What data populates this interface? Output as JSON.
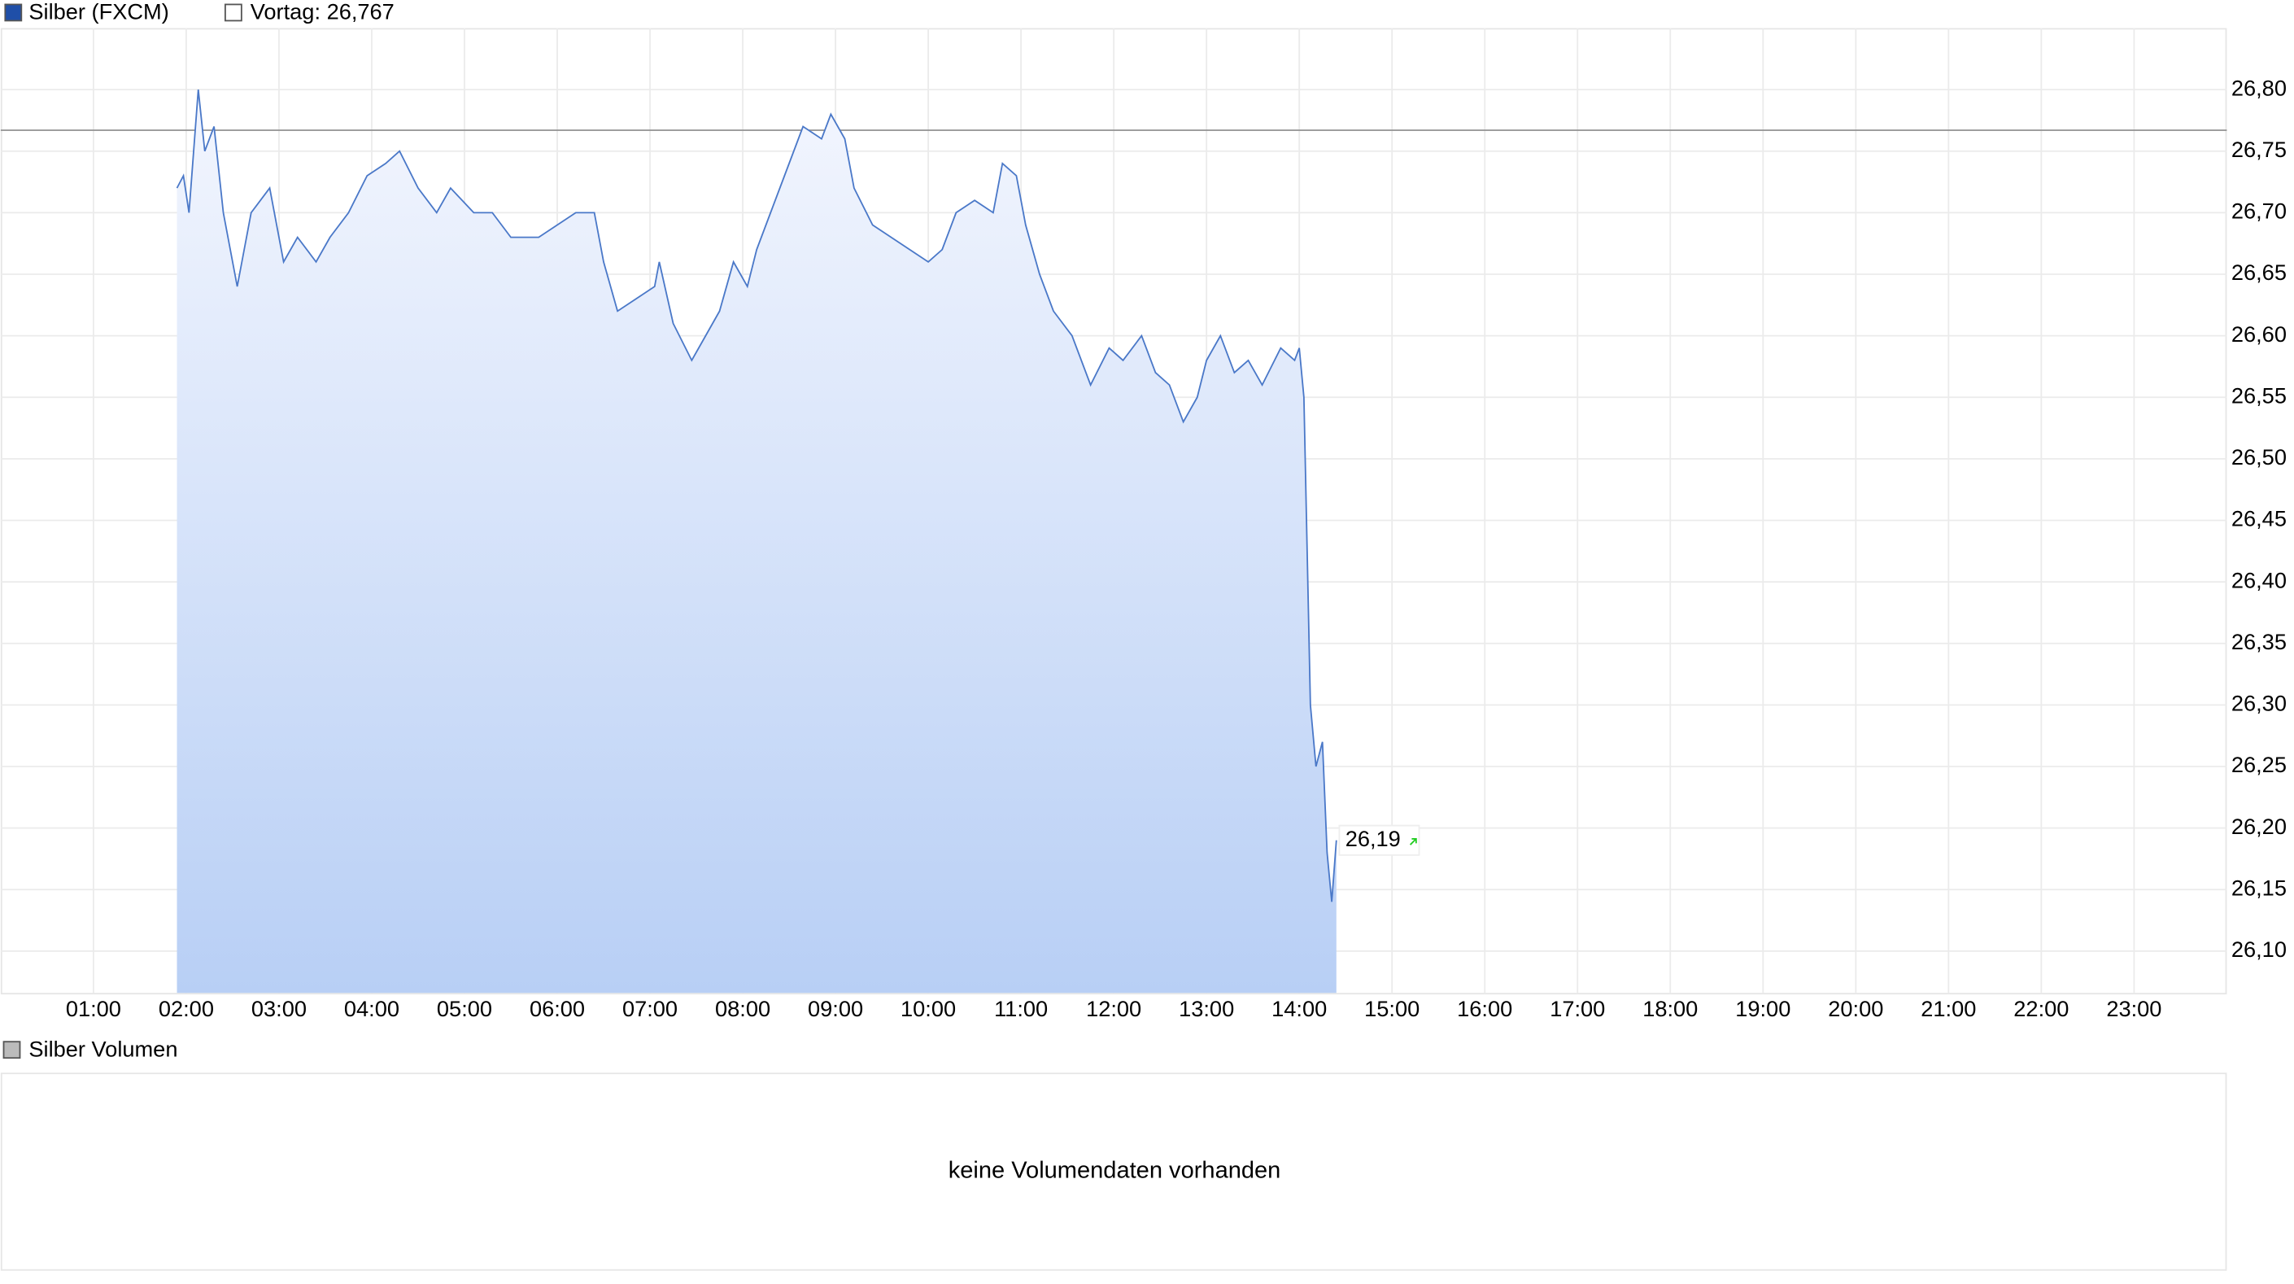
{
  "chart_data": {
    "type": "line",
    "series": [
      {
        "name": "Silber (FXCM)",
        "color": "#4a78c8",
        "x": [
          1.9,
          1.97,
          2.03,
          2.13,
          2.2,
          2.3,
          2.4,
          2.55,
          2.7,
          2.9,
          3.05,
          3.2,
          3.4,
          3.55,
          3.75,
          3.95,
          4.15,
          4.3,
          4.5,
          4.7,
          4.85,
          5.1,
          5.3,
          5.5,
          5.8,
          6.0,
          6.2,
          6.4,
          6.5,
          6.65,
          6.85,
          7.05,
          7.1,
          7.25,
          7.45,
          7.6,
          7.75,
          7.9,
          8.05,
          8.15,
          8.3,
          8.45,
          8.65,
          8.85,
          8.95,
          9.1,
          9.2,
          9.4,
          9.6,
          9.8,
          10.0,
          10.15,
          10.3,
          10.5,
          10.7,
          10.8,
          10.95,
          11.05,
          11.2,
          11.35,
          11.55,
          11.75,
          11.95,
          12.1,
          12.3,
          12.45,
          12.6,
          12.75,
          12.9,
          13.0,
          13.15,
          13.3,
          13.45,
          13.6,
          13.8,
          13.95,
          14.0,
          14.05,
          14.12,
          14.18,
          14.25,
          14.3,
          14.35,
          14.4
        ],
        "values": [
          26.72,
          26.73,
          26.7,
          26.8,
          26.75,
          26.77,
          26.7,
          26.64,
          26.7,
          26.72,
          26.66,
          26.68,
          26.66,
          26.68,
          26.7,
          26.73,
          26.74,
          26.75,
          26.72,
          26.7,
          26.72,
          26.7,
          26.7,
          26.68,
          26.68,
          26.69,
          26.7,
          26.7,
          26.66,
          26.62,
          26.63,
          26.64,
          26.66,
          26.61,
          26.58,
          26.6,
          26.62,
          26.66,
          26.64,
          26.67,
          26.7,
          26.73,
          26.77,
          26.76,
          26.78,
          26.76,
          26.72,
          26.69,
          26.68,
          26.67,
          26.66,
          26.67,
          26.7,
          26.71,
          26.7,
          26.74,
          26.73,
          26.69,
          26.65,
          26.62,
          26.6,
          26.56,
          26.59,
          26.58,
          26.6,
          26.57,
          26.56,
          26.53,
          26.55,
          26.58,
          26.6,
          26.57,
          26.58,
          26.56,
          26.59,
          26.58,
          26.59,
          26.55,
          26.3,
          26.25,
          26.27,
          26.18,
          26.14,
          26.19
        ],
        "last_label": "26,19"
      }
    ],
    "reference": {
      "label": "Vortag: 26,767",
      "value": 26.767,
      "color": "#999999"
    },
    "xlim": [
      0,
      24
    ],
    "xticks": [
      {
        "value": 1,
        "label": "01:00"
      },
      {
        "value": 2,
        "label": "02:00"
      },
      {
        "value": 3,
        "label": "03:00"
      },
      {
        "value": 4,
        "label": "04:00"
      },
      {
        "value": 5,
        "label": "05:00"
      },
      {
        "value": 6,
        "label": "06:00"
      },
      {
        "value": 7,
        "label": "07:00"
      },
      {
        "value": 8,
        "label": "08:00"
      },
      {
        "value": 9,
        "label": "09:00"
      },
      {
        "value": 10,
        "label": "10:00"
      },
      {
        "value": 11,
        "label": "11:00"
      },
      {
        "value": 12,
        "label": "12:00"
      },
      {
        "value": 13,
        "label": "13:00"
      },
      {
        "value": 14,
        "label": "14:00"
      },
      {
        "value": 15,
        "label": "15:00"
      },
      {
        "value": 16,
        "label": "16:00"
      },
      {
        "value": 17,
        "label": "17:00"
      },
      {
        "value": 18,
        "label": "18:00"
      },
      {
        "value": 19,
        "label": "19:00"
      },
      {
        "value": 20,
        "label": "20:00"
      },
      {
        "value": 21,
        "label": "21:00"
      },
      {
        "value": 22,
        "label": "22:00"
      },
      {
        "value": 23,
        "label": "23:00"
      }
    ],
    "ylim": [
      26.066,
      26.85
    ],
    "yticks": [
      {
        "value": 26.1,
        "label": "26,10"
      },
      {
        "value": 26.15,
        "label": "26,15"
      },
      {
        "value": 26.2,
        "label": "26,20"
      },
      {
        "value": 26.25,
        "label": "26,25"
      },
      {
        "value": 26.3,
        "label": "26,30"
      },
      {
        "value": 26.35,
        "label": "26,35"
      },
      {
        "value": 26.4,
        "label": "26,40"
      },
      {
        "value": 26.45,
        "label": "26,45"
      },
      {
        "value": 26.5,
        "label": "26,50"
      },
      {
        "value": 26.55,
        "label": "26,55"
      },
      {
        "value": 26.6,
        "label": "26,60"
      },
      {
        "value": 26.65,
        "label": "26,65"
      },
      {
        "value": 26.7,
        "label": "26,70"
      },
      {
        "value": 26.75,
        "label": "26,75"
      },
      {
        "value": 26.8,
        "label": "26,80"
      }
    ],
    "grid": true,
    "volume": {
      "legend": "Silber Volumen",
      "message": "keine Volumendaten vorhanden"
    }
  }
}
